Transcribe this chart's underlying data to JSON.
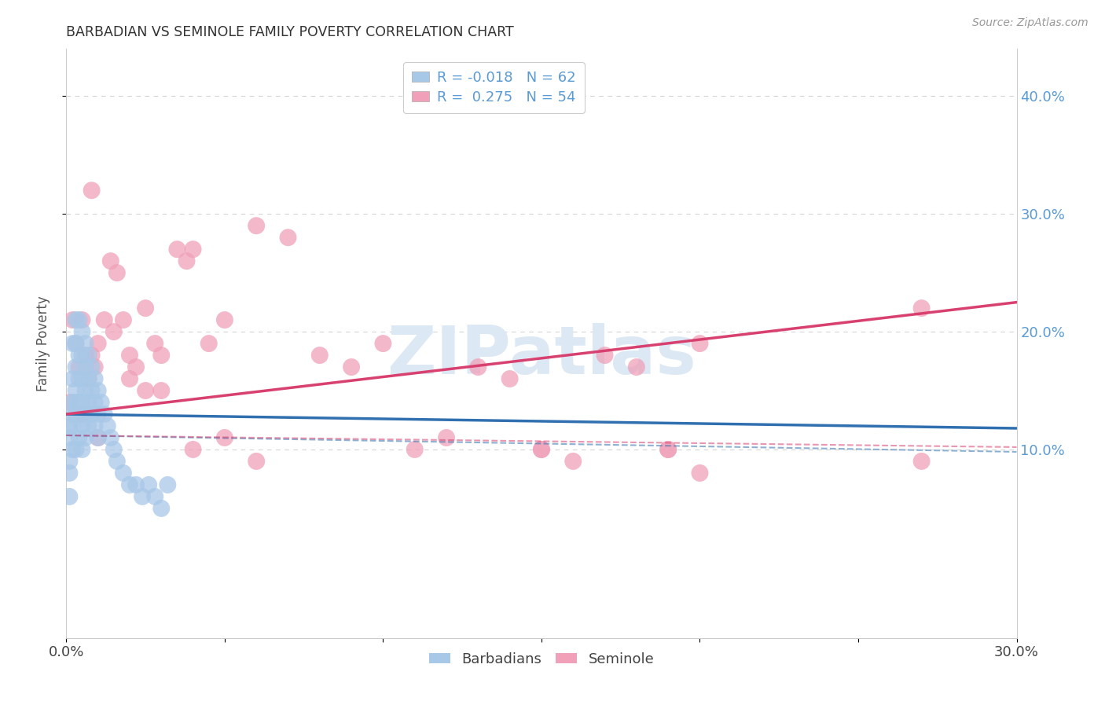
{
  "title": "BARBADIAN VS SEMINOLE FAMILY POVERTY CORRELATION CHART",
  "source": "Source: ZipAtlas.com",
  "ylabel_text": "Family Poverty",
  "xlim": [
    0.0,
    0.3
  ],
  "ylim": [
    -0.06,
    0.44
  ],
  "xticks": [
    0.0,
    0.05,
    0.1,
    0.15,
    0.2,
    0.25,
    0.3
  ],
  "xtick_labels": [
    "0.0%",
    "",
    "",
    "",
    "",
    "",
    "30.0%"
  ],
  "yticks": [
    0.1,
    0.2,
    0.3,
    0.4
  ],
  "ytick_labels": [
    "10.0%",
    "20.0%",
    "30.0%",
    "40.0%"
  ],
  "background_color": "#ffffff",
  "grid_color": "#d0d0d0",
  "barbadian_color": "#a8c8e8",
  "seminole_color": "#f0a0b8",
  "barbadian_line_color": "#3070b0",
  "seminole_line_color": "#d84070",
  "watermark": "ZIPatlas",
  "barbadian_R": -0.018,
  "seminole_R": 0.275,
  "barbadian_N": 62,
  "seminole_N": 54,
  "barbadian_x": [
    0.001,
    0.001,
    0.001,
    0.001,
    0.001,
    0.002,
    0.002,
    0.002,
    0.002,
    0.002,
    0.002,
    0.003,
    0.003,
    0.003,
    0.003,
    0.003,
    0.003,
    0.003,
    0.004,
    0.004,
    0.004,
    0.004,
    0.004,
    0.004,
    0.005,
    0.005,
    0.005,
    0.005,
    0.005,
    0.005,
    0.006,
    0.006,
    0.006,
    0.006,
    0.006,
    0.007,
    0.007,
    0.007,
    0.007,
    0.008,
    0.008,
    0.008,
    0.009,
    0.009,
    0.009,
    0.01,
    0.01,
    0.01,
    0.011,
    0.012,
    0.013,
    0.014,
    0.015,
    0.016,
    0.018,
    0.02,
    0.022,
    0.024,
    0.026,
    0.028,
    0.03,
    0.032
  ],
  "barbadian_y": [
    0.12,
    0.11,
    0.09,
    0.08,
    0.06,
    0.19,
    0.16,
    0.14,
    0.13,
    0.12,
    0.1,
    0.21,
    0.19,
    0.17,
    0.15,
    0.14,
    0.13,
    0.1,
    0.21,
    0.18,
    0.16,
    0.14,
    0.13,
    0.11,
    0.2,
    0.18,
    0.16,
    0.14,
    0.12,
    0.1,
    0.19,
    0.17,
    0.15,
    0.13,
    0.11,
    0.18,
    0.16,
    0.14,
    0.12,
    0.17,
    0.15,
    0.13,
    0.16,
    0.14,
    0.12,
    0.15,
    0.13,
    0.11,
    0.14,
    0.13,
    0.12,
    0.11,
    0.1,
    0.09,
    0.08,
    0.07,
    0.07,
    0.06,
    0.07,
    0.06,
    0.05,
    0.07
  ],
  "seminole_x": [
    0.001,
    0.002,
    0.003,
    0.004,
    0.005,
    0.006,
    0.007,
    0.008,
    0.009,
    0.01,
    0.012,
    0.014,
    0.016,
    0.018,
    0.02,
    0.022,
    0.025,
    0.028,
    0.03,
    0.035,
    0.038,
    0.04,
    0.045,
    0.05,
    0.06,
    0.07,
    0.08,
    0.09,
    0.1,
    0.11,
    0.12,
    0.13,
    0.14,
    0.15,
    0.16,
    0.17,
    0.18,
    0.19,
    0.2,
    0.005,
    0.01,
    0.015,
    0.02,
    0.025,
    0.03,
    0.04,
    0.05,
    0.06,
    0.15,
    0.19,
    0.2,
    0.27,
    0.27,
    0.008
  ],
  "seminole_y": [
    0.14,
    0.21,
    0.19,
    0.17,
    0.21,
    0.18,
    0.16,
    0.18,
    0.17,
    0.19,
    0.21,
    0.26,
    0.25,
    0.21,
    0.18,
    0.17,
    0.22,
    0.19,
    0.18,
    0.27,
    0.26,
    0.27,
    0.19,
    0.21,
    0.29,
    0.28,
    0.18,
    0.17,
    0.19,
    0.1,
    0.11,
    0.17,
    0.16,
    0.1,
    0.09,
    0.18,
    0.17,
    0.1,
    0.19,
    0.13,
    0.11,
    0.2,
    0.16,
    0.15,
    0.15,
    0.1,
    0.11,
    0.09,
    0.1,
    0.1,
    0.08,
    0.09,
    0.22,
    0.32
  ]
}
